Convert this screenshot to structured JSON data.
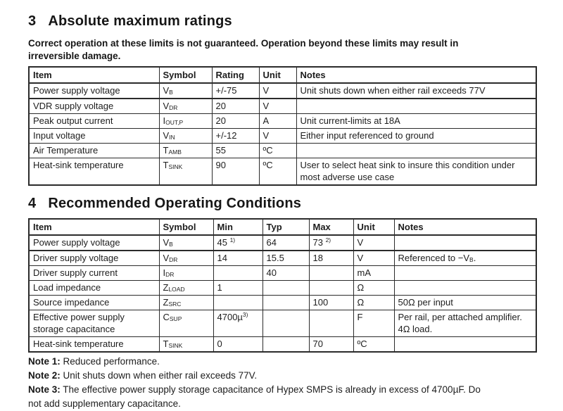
{
  "colors": {
    "background": "#ffffff",
    "text": "#1d1d1d",
    "border": "#2b2b2b"
  },
  "sections": [
    {
      "number": "3",
      "title": "Absolute maximum ratings",
      "intro": "Correct operation at these limits is not guaranteed. Operation beyond these limits may result in irreversible damage.",
      "table": {
        "headers": [
          "Item",
          "Symbol",
          "Rating",
          "Unit",
          "Notes"
        ],
        "rows": [
          [
            "Power supply voltage",
            [
              {
                "t": "V"
              },
              {
                "t": "B",
                "style": "sub"
              }
            ],
            "+/-75",
            "V",
            "Unit shuts down when either rail exceeds 77V"
          ],
          [
            "VDR supply voltage",
            [
              {
                "t": "V"
              },
              {
                "t": "DR",
                "style": "sub"
              }
            ],
            "20",
            "V",
            ""
          ],
          [
            "Peak output current",
            [
              {
                "t": "I"
              },
              {
                "t": "OUT,P",
                "style": "sub"
              }
            ],
            "20",
            "A",
            "Unit current-limits at 18A"
          ],
          [
            "Input voltage",
            [
              {
                "t": "V"
              },
              {
                "t": "IN",
                "style": "sub"
              }
            ],
            "+/-12",
            "V",
            "Either input referenced to ground"
          ],
          [
            "Air Temperature",
            [
              {
                "t": "T"
              },
              {
                "t": "AMB",
                "style": "sub"
              }
            ],
            "55",
            "ºC",
            ""
          ],
          [
            "Heat-sink temperature",
            [
              {
                "t": "T"
              },
              {
                "t": "SINK",
                "style": "sub"
              }
            ],
            "90",
            "ºC",
            "User to select heat sink to insure this condition under most adverse use case"
          ]
        ]
      }
    },
    {
      "number": "4",
      "title": "Recommended Operating Conditions",
      "intro": "",
      "table": {
        "headers": [
          "Item",
          "Symbol",
          "Min",
          "Typ",
          "Max",
          "Unit",
          "Notes"
        ],
        "rows": [
          [
            "Power supply voltage",
            [
              {
                "t": "V"
              },
              {
                "t": "B",
                "style": "sub"
              }
            ],
            [
              {
                "t": "45 "
              },
              {
                "t": "1)",
                "style": "sup"
              }
            ],
            "64",
            [
              {
                "t": "73 "
              },
              {
                "t": "2)",
                "style": "sup"
              }
            ],
            "V",
            ""
          ],
          [
            "Driver supply voltage",
            [
              {
                "t": "V"
              },
              {
                "t": "DR",
                "style": "sub"
              }
            ],
            "14",
            "15.5",
            "18",
            "V",
            [
              {
                "t": "Referenced to −V"
              },
              {
                "t": "B",
                "style": "sub"
              },
              {
                "t": "."
              }
            ]
          ],
          [
            "Driver supply current",
            [
              {
                "t": "I"
              },
              {
                "t": "DR",
                "style": "sub"
              }
            ],
            "",
            "40",
            "",
            "mA",
            ""
          ],
          [
            "Load impedance",
            [
              {
                "t": "Z"
              },
              {
                "t": "LOAD",
                "style": "sub"
              }
            ],
            "1",
            "",
            "",
            "Ω",
            ""
          ],
          [
            "Source impedance",
            [
              {
                "t": "Z"
              },
              {
                "t": "SRC",
                "style": "sub"
              }
            ],
            "",
            "",
            "100",
            "Ω",
            "50Ω per input"
          ],
          [
            "Effective power supply storage capacitance",
            [
              {
                "t": "C"
              },
              {
                "t": "SUP",
                "style": "sub"
              }
            ],
            [
              {
                "t": "4700µ"
              },
              {
                "t": "3)",
                "style": "sup"
              }
            ],
            "",
            "",
            "F",
            "Per rail, per attached amplifier. 4Ω load."
          ],
          [
            "Heat-sink temperature",
            [
              {
                "t": "T"
              },
              {
                "t": "SINK",
                "style": "sub"
              }
            ],
            "0",
            "",
            "70",
            "ºC",
            ""
          ]
        ]
      }
    }
  ],
  "footnotes": [
    {
      "label": "Note 1:",
      "text": " Reduced performance."
    },
    {
      "label": "Note 2:",
      "text": " Unit shuts down when either rail exceeds 77V."
    },
    {
      "label": "Note 3:",
      "text": " The effective power supply storage capacitance of Hypex SMPS is already in excess of 4700µF. Do not add supplementary capacitance."
    }
  ]
}
